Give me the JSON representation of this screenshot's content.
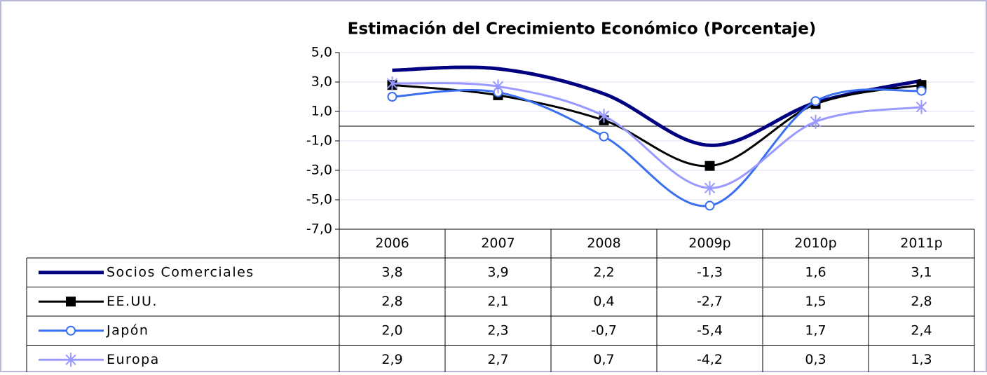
{
  "chart_data": {
    "type": "line",
    "title": "Estimación del Crecimiento Económico (Porcentaje)",
    "categories": [
      "2006",
      "2007",
      "2008",
      "2009p",
      "2010p",
      "2011p"
    ],
    "series": [
      {
        "name": "Socios Comerciales",
        "color": "#000080",
        "values": [
          3.8,
          3.9,
          2.2,
          -1.3,
          1.6,
          3.1
        ],
        "value_labels": [
          "3,8",
          "3,9",
          "2,2",
          "-1,3",
          "1,6",
          "3,1"
        ]
      },
      {
        "name": "EE.UU.",
        "color": "#000000",
        "marker": "square",
        "values": [
          2.8,
          2.1,
          0.4,
          -2.7,
          1.5,
          2.8
        ],
        "value_labels": [
          "2,8",
          "2,1",
          "0,4",
          "-2,7",
          "1,5",
          "2,8"
        ]
      },
      {
        "name": "Japón",
        "color": "#3a6ff0",
        "marker": "circle",
        "values": [
          2.0,
          2.3,
          -0.7,
          -5.4,
          1.7,
          2.4
        ],
        "value_labels": [
          "2,0",
          "2,3",
          "-0,7",
          "-5,4",
          "1,7",
          "2,4"
        ]
      },
      {
        "name": "Europa",
        "color": "#9999ff",
        "marker": "asterisk",
        "values": [
          2.9,
          2.7,
          0.7,
          -4.2,
          0.3,
          1.3
        ],
        "value_labels": [
          "2,9",
          "2,7",
          "0,7",
          "-4,2",
          "0,3",
          "1,3"
        ]
      }
    ],
    "ylim": [
      -7,
      5
    ],
    "yticks": [
      {
        "value": -7,
        "label": "-7,0"
      },
      {
        "value": -5,
        "label": "-5,0"
      },
      {
        "value": -3,
        "label": "-3,0"
      },
      {
        "value": -1,
        "label": "-1,0"
      },
      {
        "value": 1,
        "label": "1,0"
      },
      {
        "value": 3,
        "label": "3,0"
      },
      {
        "value": 5,
        "label": "5,0"
      }
    ],
    "grid": true
  }
}
